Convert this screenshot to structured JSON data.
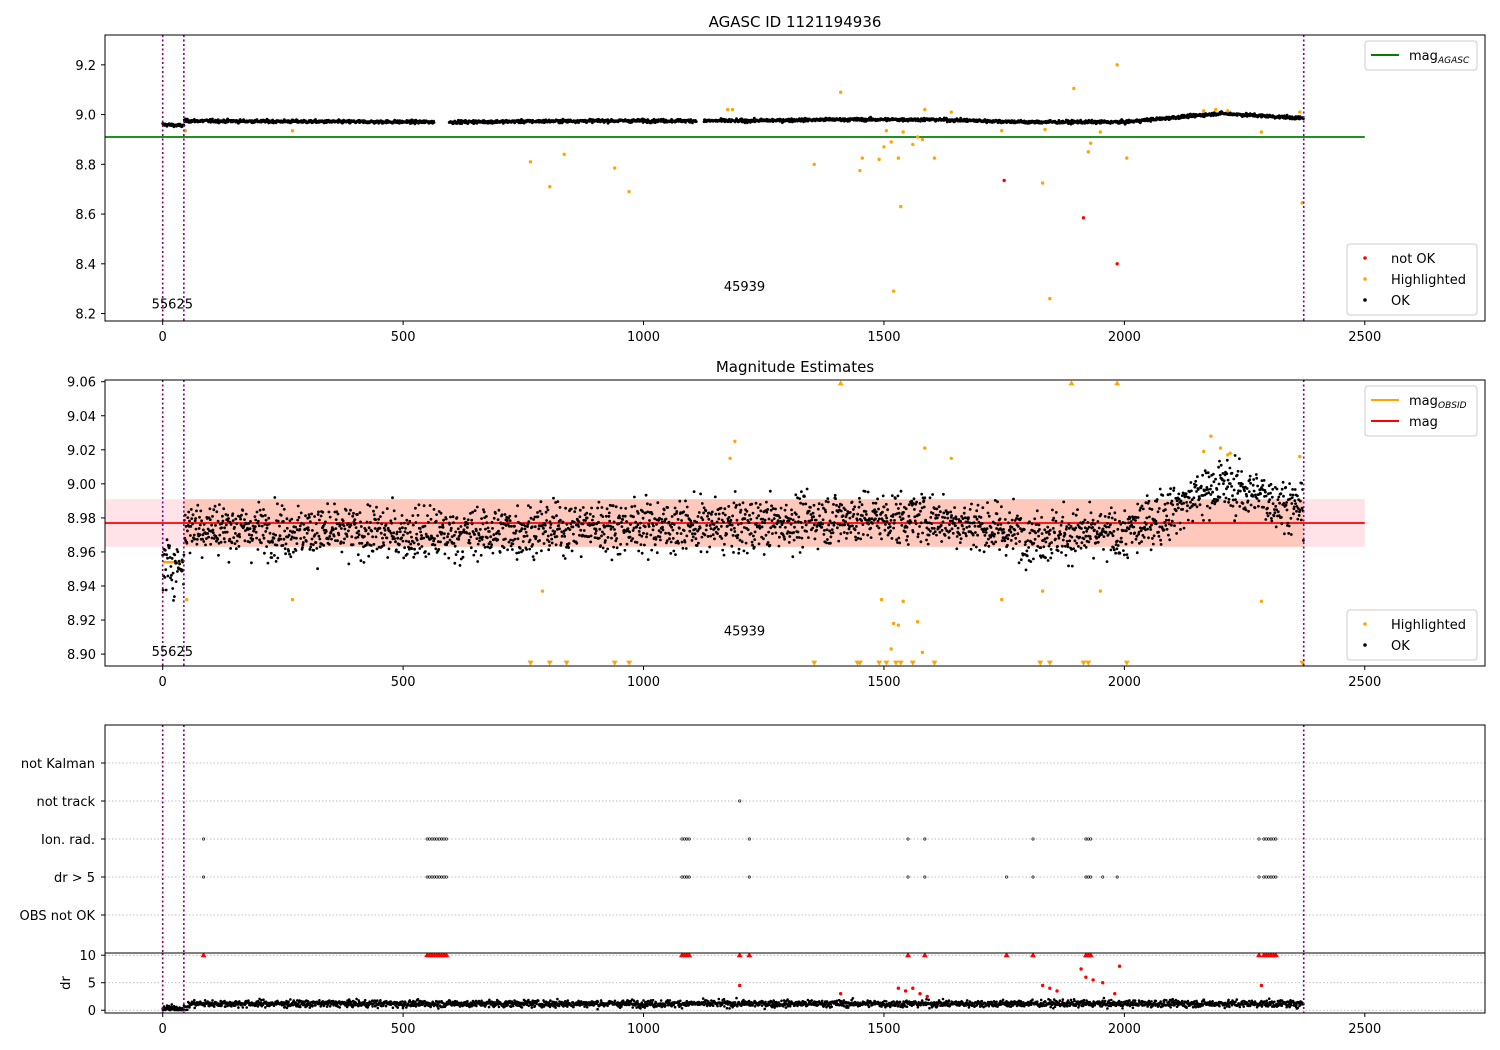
{
  "chart_data": [
    {
      "type": "scatter",
      "title": "AGASC ID 1121194936",
      "xlim": [
        -120,
        2750
      ],
      "ylim": [
        8.17,
        9.32
      ],
      "xticks": [
        0,
        500,
        1000,
        1500,
        2000,
        2500
      ],
      "yticks": [
        8.2,
        8.4,
        8.6,
        8.8,
        9.0,
        9.2
      ],
      "yticklabels": [
        "8.2",
        "8.4",
        "8.6",
        "8.8",
        "9.0",
        "9.2"
      ],
      "hlines": [
        {
          "name": "mag_AGASC",
          "y": 8.91,
          "x": [
            -120,
            2500
          ],
          "color": "#008000"
        }
      ],
      "vlines": [
        0,
        44,
        2373
      ],
      "annotations": [
        {
          "text": "55625",
          "x": 20,
          "y": 8.22
        },
        {
          "text": "45939",
          "x": 1210,
          "y": 8.29
        }
      ],
      "legend_top": {
        "loc": "upper right",
        "entries": [
          {
            "name": "mag",
            "sub": "AGASC",
            "color": "#008000",
            "kind": "line"
          }
        ]
      },
      "legend_bottom": {
        "loc": "lower right",
        "entries": [
          {
            "name": "not OK",
            "color": "#ff0000",
            "kind": "point"
          },
          {
            "name": "Highlighted",
            "color": "#ffa500",
            "kind": "point"
          },
          {
            "name": "OK",
            "color": "#000000",
            "kind": "point"
          }
        ]
      },
      "series": [
        {
          "name": "OK",
          "color": "#000000",
          "baseline": [
            [
              0,
              8.96
            ],
            [
              44,
              8.955
            ],
            [
              45,
              8.975
            ],
            [
              300,
              8.972
            ],
            [
              600,
              8.97
            ],
            [
              900,
              8.975
            ],
            [
              1200,
              8.975
            ],
            [
              1400,
              8.98
            ],
            [
              1600,
              8.98
            ],
            [
              1800,
              8.97
            ],
            [
              2000,
              8.97
            ],
            [
              2200,
              9.005
            ],
            [
              2373,
              8.985
            ]
          ],
          "gaps": [
            [
              565,
              595
            ],
            [
              1110,
              1125
            ]
          ],
          "noise": 0.009
        },
        {
          "name": "Highlighted",
          "color": "#ffa500",
          "points": [
            [
              47,
              8.935
            ],
            [
              270,
              8.935
            ],
            [
              765,
              8.81
            ],
            [
              805,
              8.71
            ],
            [
              835,
              8.84
            ],
            [
              940,
              8.785
            ],
            [
              970,
              8.69
            ],
            [
              1175,
              9.02
            ],
            [
              1185,
              9.02
            ],
            [
              1355,
              8.8
            ],
            [
              1410,
              9.09
            ],
            [
              1450,
              8.775
            ],
            [
              1455,
              8.825
            ],
            [
              1490,
              8.82
            ],
            [
              1500,
              8.87
            ],
            [
              1505,
              8.935
            ],
            [
              1515,
              8.89
            ],
            [
              1520,
              8.29
            ],
            [
              1530,
              8.825
            ],
            [
              1535,
              8.63
            ],
            [
              1540,
              8.93
            ],
            [
              1560,
              8.88
            ],
            [
              1570,
              8.91
            ],
            [
              1580,
              8.9
            ],
            [
              1585,
              9.02
            ],
            [
              1605,
              8.825
            ],
            [
              1640,
              9.01
            ],
            [
              1745,
              8.935
            ],
            [
              1830,
              8.725
            ],
            [
              1835,
              8.94
            ],
            [
              1845,
              8.26
            ],
            [
              1895,
              9.105
            ],
            [
              1925,
              8.85
            ],
            [
              1930,
              8.885
            ],
            [
              1950,
              8.93
            ],
            [
              1985,
              9.2
            ],
            [
              2005,
              8.825
            ],
            [
              2165,
              9.015
            ],
            [
              2190,
              9.02
            ],
            [
              2215,
              9.015
            ],
            [
              2285,
              8.93
            ],
            [
              2365,
              9.01
            ],
            [
              2370,
              8.645
            ]
          ]
        },
        {
          "name": "not OK",
          "color": "#ff0000",
          "points": [
            [
              1750,
              8.735
            ],
            [
              1915,
              8.585
            ],
            [
              1985,
              8.4
            ]
          ]
        }
      ]
    },
    {
      "type": "scatter",
      "title": "Magnitude Estimates",
      "xlim": [
        -120,
        2750
      ],
      "ylim": [
        8.893,
        9.061
      ],
      "xticks": [
        0,
        500,
        1000,
        1500,
        2000,
        2500
      ],
      "yticks": [
        8.9,
        8.92,
        8.94,
        8.96,
        8.98,
        9.0,
        9.02,
        9.04,
        9.06
      ],
      "yticklabels": [
        "8.90",
        "8.92",
        "8.94",
        "8.96",
        "8.98",
        "9.00",
        "9.02",
        "9.04",
        "9.06"
      ],
      "hlines": [
        {
          "name": "mag",
          "y": 8.977,
          "x": [
            -120,
            2500
          ],
          "color": "#ff0000"
        },
        {
          "name": "mag_OBSID",
          "y": 8.954,
          "x": [
            0,
            44
          ],
          "color": "#ffa500"
        }
      ],
      "bands": [
        {
          "y": [
            8.963,
            8.991
          ],
          "x": [
            -120,
            2500
          ],
          "color": "#ffc0cb",
          "opacity": 0.45
        },
        {
          "y": [
            8.963,
            8.991
          ],
          "x": [
            44,
            2373
          ],
          "color": "#ffa07a",
          "opacity": 0.4
        }
      ],
      "vlines": [
        0,
        44,
        2373
      ],
      "annotations": [
        {
          "text": "55625",
          "x": 20,
          "y": 8.899
        },
        {
          "text": "45939",
          "x": 1210,
          "y": 8.911
        }
      ],
      "legend_top": {
        "loc": "upper right",
        "entries": [
          {
            "name": "mag",
            "sub": "OBSID",
            "color": "#ffa500",
            "kind": "line"
          },
          {
            "name": "mag",
            "sub": "",
            "color": "#ff0000",
            "kind": "line"
          }
        ]
      },
      "legend_bottom": {
        "loc": "lower right",
        "entries": [
          {
            "name": "Highlighted",
            "color": "#ffa500",
            "kind": "point"
          },
          {
            "name": "OK",
            "color": "#000000",
            "kind": "point"
          }
        ]
      },
      "series": [
        {
          "name": "OK",
          "color": "#000000",
          "baseline": [
            [
              0,
              8.953
            ],
            [
              44,
              8.952
            ],
            [
              45,
              8.975
            ],
            [
              300,
              8.972
            ],
            [
              600,
              8.97
            ],
            [
              900,
              8.975
            ],
            [
              1200,
              8.975
            ],
            [
              1400,
              8.98
            ],
            [
              1600,
              8.98
            ],
            [
              1800,
              8.97
            ],
            [
              2000,
              8.97
            ],
            [
              2200,
              9.0
            ],
            [
              2373,
              8.985
            ]
          ],
          "gaps": [],
          "noise": 0.012
        },
        {
          "name": "Highlighted",
          "color": "#ffa500",
          "points": [
            [
              50,
              8.932
            ],
            [
              270,
              8.932
            ],
            [
              790,
              8.937
            ],
            [
              1180,
              9.015
            ],
            [
              1190,
              9.025
            ],
            [
              1495,
              8.932
            ],
            [
              1515,
              8.903
            ],
            [
              1520,
              8.918
            ],
            [
              1530,
              8.917
            ],
            [
              1540,
              8.931
            ],
            [
              1570,
              8.919
            ],
            [
              1580,
              8.901
            ],
            [
              1585,
              9.021
            ],
            [
              1640,
              9.015
            ],
            [
              1745,
              8.932
            ],
            [
              1830,
              8.937
            ],
            [
              1950,
              8.937
            ],
            [
              2165,
              9.019
            ],
            [
              2180,
              9.028
            ],
            [
              2200,
              9.021
            ],
            [
              2215,
              9.017
            ],
            [
              2220,
              9.018
            ],
            [
              2285,
              8.931
            ],
            [
              2365,
              9.016
            ]
          ]
        },
        {
          "name": "Highlighted (clipped)",
          "color": "#ffa500",
          "points": [
            [
              765,
              8.895
            ],
            [
              805,
              8.895
            ],
            [
              840,
              8.895
            ],
            [
              940,
              8.895
            ],
            [
              970,
              8.895
            ],
            [
              1355,
              8.895
            ],
            [
              1410,
              9.059
            ],
            [
              1445,
              8.895
            ],
            [
              1450,
              8.895
            ],
            [
              1490,
              8.895
            ],
            [
              1505,
              8.895
            ],
            [
              1525,
              8.895
            ],
            [
              1535,
              8.895
            ],
            [
              1560,
              8.895
            ],
            [
              1605,
              8.895
            ],
            [
              1825,
              8.895
            ],
            [
              1845,
              8.895
            ],
            [
              1890,
              9.059
            ],
            [
              1915,
              8.895
            ],
            [
              1925,
              8.895
            ],
            [
              1985,
              9.059
            ],
            [
              2005,
              8.895
            ],
            [
              2370,
              8.895
            ]
          ]
        }
      ]
    },
    {
      "type": "scatter",
      "title": "",
      "xlim": [
        -120,
        2750
      ],
      "xticks": [
        0,
        500,
        1000,
        1500,
        2000,
        2500
      ],
      "categories": [
        "not Kalman",
        "not track",
        "Ion. rad.",
        "dr > 5",
        "OBS not OK"
      ],
      "vlines": [
        0,
        44,
        2373
      ],
      "flag_clusters": [
        {
          "category": "not track",
          "points": [
            1200
          ]
        },
        {
          "category": "Ion. rad.",
          "points": [
            85,
            550,
            555,
            560,
            565,
            570,
            575,
            580,
            585,
            590,
            1080,
            1085,
            1090,
            1095,
            1220,
            1550,
            1585,
            1810,
            1920,
            1925,
            1930,
            2280,
            2290,
            2295,
            2300,
            2305,
            2310,
            2315
          ]
        },
        {
          "category": "dr > 5",
          "points": [
            85,
            550,
            555,
            560,
            565,
            570,
            575,
            580,
            585,
            590,
            1080,
            1085,
            1090,
            1095,
            1220,
            1550,
            1585,
            1755,
            1810,
            1920,
            1925,
            1930,
            1955,
            1985,
            2280,
            2290,
            2295,
            2300,
            2305,
            2310,
            2315
          ]
        }
      ]
    },
    {
      "type": "scatter",
      "title": "",
      "ylabel": "dr",
      "xlim": [
        -120,
        2750
      ],
      "ylim": [
        -0.5,
        10.4
      ],
      "xticks": [
        0,
        500,
        1000,
        1500,
        2000,
        2500
      ],
      "yticks": [
        0,
        5,
        10
      ],
      "yticklabels": [
        "0",
        "5",
        "10"
      ],
      "vlines": [
        0,
        44,
        2373
      ],
      "series": [
        {
          "name": "dr",
          "color": "#000000",
          "baseline": [
            [
              0,
              0.3
            ],
            [
              44,
              0.3
            ],
            [
              60,
              1.2
            ],
            [
              2373,
              1.2
            ]
          ],
          "gaps": [],
          "noise": 0.5
        },
        {
          "name": "dr > 5 (capped)",
          "color": "#ff0000",
          "marker": "triangle",
          "points": [
            [
              85,
              10
            ],
            [
              550,
              10
            ],
            [
              555,
              10
            ],
            [
              560,
              10
            ],
            [
              565,
              10
            ],
            [
              570,
              10
            ],
            [
              575,
              10
            ],
            [
              580,
              10
            ],
            [
              585,
              10
            ],
            [
              590,
              10
            ],
            [
              1080,
              10
            ],
            [
              1085,
              10
            ],
            [
              1090,
              10
            ],
            [
              1095,
              10
            ],
            [
              1200,
              10
            ],
            [
              1220,
              10
            ],
            [
              1550,
              10
            ],
            [
              1585,
              10
            ],
            [
              1755,
              10
            ],
            [
              1810,
              10
            ],
            [
              1920,
              10
            ],
            [
              1925,
              10
            ],
            [
              1930,
              10
            ],
            [
              2280,
              10
            ],
            [
              2290,
              10
            ],
            [
              2295,
              10
            ],
            [
              2300,
              10
            ],
            [
              2305,
              10
            ],
            [
              2310,
              10
            ],
            [
              2315,
              10
            ]
          ]
        },
        {
          "name": "dr (flagged)",
          "color": "#ff0000",
          "points": [
            [
              1200,
              4.5
            ],
            [
              1410,
              3.0
            ],
            [
              1530,
              4.0
            ],
            [
              1545,
              3.5
            ],
            [
              1560,
              4.0
            ],
            [
              1575,
              3.0
            ],
            [
              1590,
              2.5
            ],
            [
              1830,
              4.5
            ],
            [
              1845,
              4.0
            ],
            [
              1860,
              3.5
            ],
            [
              1910,
              7.5
            ],
            [
              1920,
              6.0
            ],
            [
              1935,
              5.5
            ],
            [
              1955,
              5.0
            ],
            [
              1980,
              3.0
            ],
            [
              1990,
              8.0
            ],
            [
              2285,
              4.5
            ]
          ]
        }
      ]
    }
  ]
}
